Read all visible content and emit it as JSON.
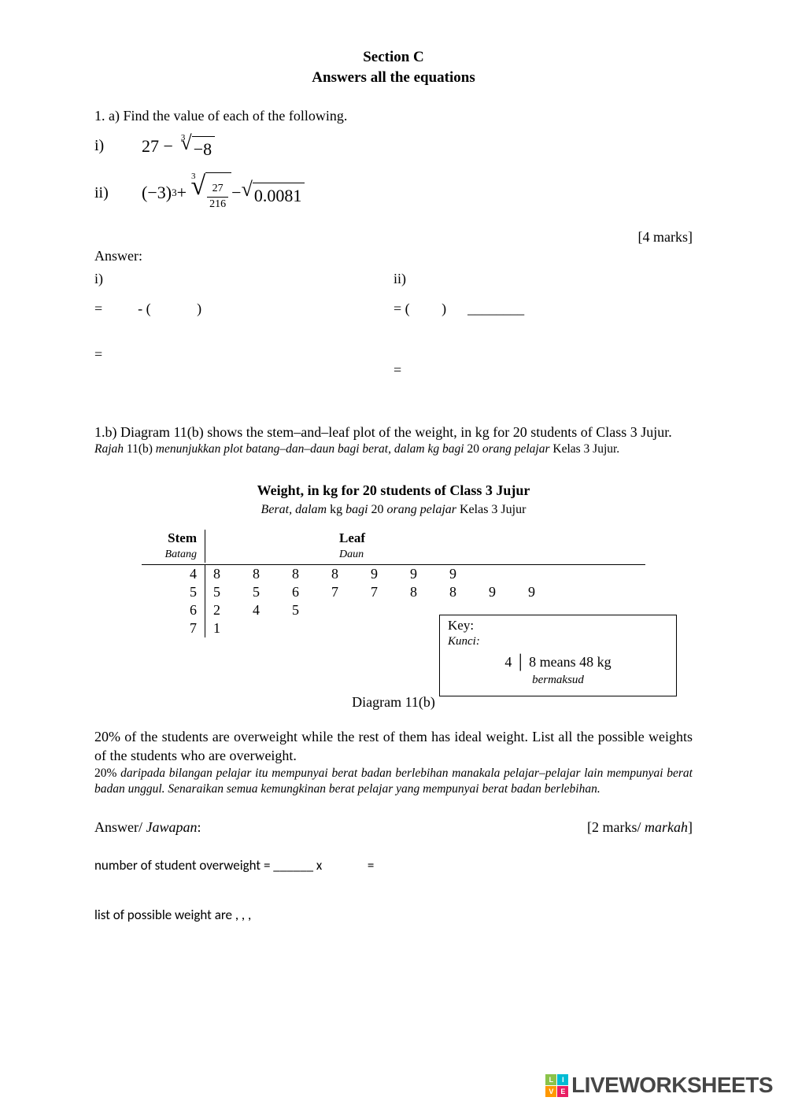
{
  "header": {
    "section": "Section C",
    "instruction": "Answers all the equations"
  },
  "q1a": {
    "prompt": "1.  a) Find the value of each of the following.",
    "item_i_label": "i)",
    "item_i_expr_a": "27 −",
    "item_i_rad_index": "3",
    "item_i_rad_body": "−8",
    "item_ii_label": "ii)",
    "item_ii_a": "(−3)",
    "item_ii_sup": "3",
    "item_ii_plus": " + ",
    "item_ii_rad_index": "3",
    "item_ii_frac_num": "27",
    "item_ii_frac_den": "216",
    "item_ii_minus": " − ",
    "item_ii_sqrt_body": "0.0081",
    "marks": "[4 marks]",
    "answer_label": "Answer:",
    "col_i_label": "i)",
    "col_i_r1": "=          - (             )",
    "col_i_r2": "=",
    "col_ii_label": "ii)",
    "col_ii_r1": "= (         )      ________",
    "col_ii_r2": "="
  },
  "q1b": {
    "text_en": "1.b) Diagram 11(b) shows the stem–and–leaf plot of the weight, in kg for 20 students of Class 3 Jujur.",
    "text_my_a": "Rajah ",
    "text_my_b": "11(b)",
    "text_my_c": " menunjukkan plot batang–dan–daun bagi berat, dalam kg bagi ",
    "text_my_d": "20",
    "text_my_e": " orang pelajar ",
    "text_my_f": "Kelas 3 Jujur.",
    "chart": {
      "title": "Weight, in kg for 20 students of Class 3 Jujur",
      "subtitle_a": "Berat, dalam ",
      "subtitle_b": "kg",
      "subtitle_c": " bagi ",
      "subtitle_d": "20",
      "subtitle_e": " orang pelajar ",
      "subtitle_f": "Kelas 3 Jujur",
      "stem_head": "Stem",
      "stem_head_it": "Batang",
      "leaf_head": "Leaf",
      "leaf_head_it": "Daun",
      "stems": [
        "4",
        "5",
        "6",
        "7"
      ],
      "leaves": [
        [
          "8",
          "8",
          "8",
          "8",
          "9",
          "9",
          "9"
        ],
        [
          "5",
          "5",
          "6",
          "7",
          "7",
          "8",
          "8",
          "9",
          "9"
        ],
        [
          "2",
          "4",
          "5"
        ],
        [
          "1"
        ]
      ],
      "key_label": "Key:",
      "key_label_it": "Kunci",
      "key_example": "4 │ 8   means   48 kg",
      "key_example_it": "bermaksud",
      "diagram_label": "Diagram 11(b)"
    },
    "q_text_en": "20% of the students are overweight while the rest of them has ideal weight. List all the possible weights of the students who are overweight.",
    "q_text_my": "20% daripada bilangan pelajar itu mempunyai berat badan berlebihan manakala pelajar–pelajar lain mempunyai berat badan unggul. Senaraikan semua kemungkinan berat pelajar yang mempunyai berat badan berlebihan.",
    "answer_label": "Answer/ ",
    "answer_label_it": "Jawapan",
    "marks": "[2 marks/ ",
    "marks_it": "markah",
    "marks_end": "]",
    "calc1": "number of student overweight = ______ x               =",
    "calc2": "list of possible weight are             ,             ,             ,"
  },
  "watermark": {
    "text": "LIVEWORKSHEETS",
    "badge_colors": [
      "#8bc34a",
      "#00bcd4",
      "#ff9800",
      "#e91e63"
    ],
    "badge_letters": [
      "L",
      "I",
      "V",
      "E"
    ]
  }
}
